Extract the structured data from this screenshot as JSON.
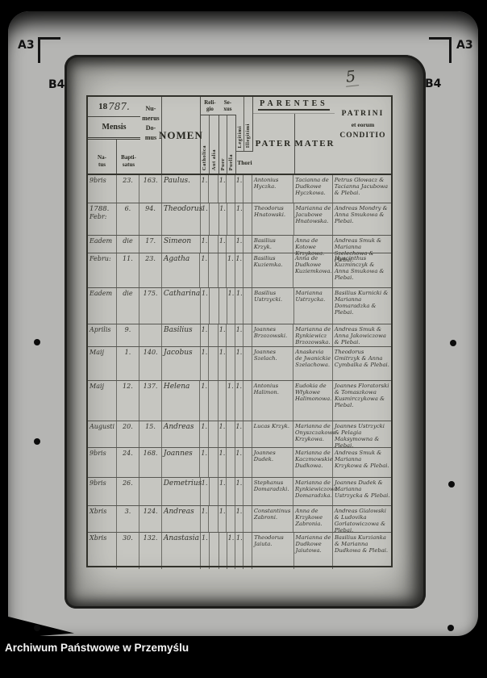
{
  "frame": {
    "marks": {
      "a3_left": "A3",
      "a3_right": "A3",
      "b4_left": "B4",
      "b4_right": "B4"
    },
    "page_number": "5",
    "caption": "Archiwum Państwowe w Przemyślu"
  },
  "colors": {
    "background": "#000000",
    "film": "#b5b5b3",
    "page": "#c6c6c1",
    "ink": "#26261f",
    "handwriting": "#31312b",
    "caption_text": "#f5f5f5"
  },
  "table": {
    "header": {
      "year_printed": "18",
      "year_hand": "787.",
      "mensis": "Mensis",
      "natus_l1": "Na-",
      "natus_l2": "tus",
      "bapt_l1": "Bapti-",
      "bapt_l2": "satus",
      "numerus_l1": "Nu-",
      "numerus_l2": "merus",
      "numerus_l3": "Do-",
      "numerus_l4": "mus",
      "nomen": "NOMEN",
      "religio_l1": "Reli-",
      "religio_l2": "gio",
      "catholica": "Catholica",
      "aut_alia": "Aut alia",
      "sexus_l1": "Se-",
      "sexus_l2": "xus",
      "puer": "Puer",
      "puella": "Puella",
      "legitimi": "Legitimi",
      "illegitimi": "Illegitimi",
      "thori": "Thori",
      "parentes": "PARENTES",
      "pater": "PATER",
      "mater": "MATER",
      "patrini_l1": "PATRINI",
      "patrini_l2": "et eorum",
      "patrini_l3": "CONDITIO"
    },
    "rows": [
      {
        "year_note": "",
        "natus": "9bris",
        "baptisatus": "23.",
        "domus": "163.",
        "nomen": "Paulus.",
        "catholica": "1.",
        "aut_alia": "",
        "puer": "1.",
        "puella": "",
        "legitimi": "1.",
        "illegitimi": "",
        "pater": "Antonius Hyczka.",
        "mater": "Tacianna de Dudkowe Hyczkowa.",
        "patrini": "Petrus Głowacz & Tacianna Jacubowa & Plebai."
      },
      {
        "year_note": "1788.",
        "natus": "Febr:",
        "baptisatus": "6.",
        "domus": "94.",
        "nomen": "Theodorus",
        "catholica": "1.",
        "aut_alia": "",
        "puer": "1.",
        "puella": "",
        "legitimi": "1.",
        "illegitimi": "",
        "pater": "Theodorus Hnatowski.",
        "mater": "Marianna de Jacubowe Hnatowska.",
        "patrini": "Andreas Mondry & Anna Smukowa & Plebai."
      },
      {
        "year_note": "",
        "natus": "Eadem",
        "baptisatus": "die",
        "domus": "17.",
        "nomen": "Simeon",
        "catholica": "1.",
        "aut_alia": "",
        "puer": "1.",
        "puella": "",
        "legitimi": "1.",
        "illegitimi": "",
        "pater": "Basilius Krzyk.",
        "mater": "Anna de Kotowe Krzykowa.",
        "patrini": "Andreas Smuk & Marianna Szelechowa & Plebai."
      },
      {
        "year_note": "",
        "natus": "Febru:",
        "baptisatus": "11.",
        "domus": "23.",
        "nomen": "Agatha",
        "catholica": "1.",
        "aut_alia": "",
        "puer": "",
        "puella": "1.",
        "legitimi": "1.",
        "illegitimi": "",
        "pater": "Basilius Kuziemka.",
        "mater": "Anna de Dudkowe Kuziemkowa.",
        "patrini": "Hyacinthus Kuzminczyk & Anna Smukowa & Plebai."
      },
      {
        "year_note": "",
        "natus": "Eadem",
        "baptisatus": "die",
        "domus": "175.",
        "nomen": "Catharina",
        "catholica": "1.",
        "aut_alia": "",
        "puer": "",
        "puella": "1.",
        "legitimi": "1.",
        "illegitimi": "",
        "pater": "Basilius Ustrzycki.",
        "mater": "Marianna Ustrzycka.",
        "patrini": "Basilius Kurnicki & Marianna Domaradzka & Plebai."
      },
      {
        "year_note": "",
        "natus": "Aprilis",
        "baptisatus": "9.",
        "domus": "",
        "nomen": "Basilius",
        "catholica": "1.",
        "aut_alia": "",
        "puer": "1.",
        "puella": "",
        "legitimi": "1.",
        "illegitimi": "",
        "pater": "Joannes Brzozowski.",
        "mater": "Marianna de Rynkiewicz Brzozowska.",
        "patrini": "Andreas Smuk & Anna Jakowiczowa & Plebai."
      },
      {
        "year_note": "",
        "natus": "Maij",
        "baptisatus": "1.",
        "domus": "140.",
        "nomen": "Jacobus",
        "catholica": "1.",
        "aut_alia": "",
        "puer": "1.",
        "puella": "",
        "legitimi": "1.",
        "illegitimi": "",
        "pater": "Joannes Szelach.",
        "mater": "Anaskevia de Jwanickie Szelachowa.",
        "patrini": "Theodorus Gmitrzyk & Anna Cymbalka & Plebai."
      },
      {
        "year_note": "",
        "natus": "Maij",
        "baptisatus": "12.",
        "domus": "137.",
        "nomen": "Helena",
        "catholica": "1.",
        "aut_alia": "",
        "puer": "",
        "puella": "1.",
        "legitimi": "1.",
        "illegitimi": "",
        "pater": "Antonius Halimon.",
        "mater": "Eudokia de Włykowe Halimonowa.",
        "patrini": "Joannes Floratorski & Tomaszkowa Kusmirczykowa & Plebal."
      },
      {
        "year_note": "",
        "natus": "Augusti",
        "baptisatus": "20.",
        "domus": "15.",
        "nomen": "Andreas",
        "catholica": "1.",
        "aut_alia": "",
        "puer": "1.",
        "puella": "",
        "legitimi": "1.",
        "illegitimi": "",
        "pater": "Lucas Krzyk.",
        "mater": "Marianna de Onyszczakowe Krzykowa.",
        "patrini": "Joannes Ustrzycki & Pelagia Maksymowna & Plebai."
      },
      {
        "year_note": "",
        "natus": "9bris",
        "baptisatus": "24.",
        "domus": "168.",
        "nomen": "Joannes",
        "catholica": "1.",
        "aut_alia": "",
        "puer": "1.",
        "puella": "",
        "legitimi": "1.",
        "illegitimi": "",
        "pater": "Joannes Dudek.",
        "mater": "Marianna de Kaczmowskie Dudkowa.",
        "patrini": "Andreas Smuk & Marianna Krzykowa & Plebai."
      },
      {
        "year_note": "",
        "natus": "9bris",
        "baptisatus": "26.",
        "domus": "",
        "nomen": "Demetrius",
        "catholica": "1.",
        "aut_alia": "",
        "puer": "1.",
        "puella": "",
        "legitimi": "1.",
        "illegitimi": "",
        "pater": "Stephanus Domaradzki.",
        "mater": "Marianna de Rynkiewiczowa Domaradzka.",
        "patrini": "Joannes Dudek & Marianna Ustrzycka & Plebai."
      },
      {
        "year_note": "",
        "natus": "Xbris",
        "baptisatus": "3.",
        "domus": "124.",
        "nomen": "Andreas",
        "catholica": "1.",
        "aut_alia": "",
        "puer": "1.",
        "puella": "",
        "legitimi": "1.",
        "illegitimi": "",
        "pater": "Constantinus Zabroni.",
        "mater": "Anna de Krzykowe Zabronia.",
        "patrini": "Andreas Gialowski & Ludovika Gorlatowiczowa & Plebai."
      },
      {
        "year_note": "",
        "natus": "Xbris",
        "baptisatus": "30.",
        "domus": "132.",
        "nomen": "Anastasia",
        "catholica": "1.",
        "aut_alia": "",
        "puer": "",
        "puella": "1.",
        "legitimi": "1.",
        "illegitimi": "",
        "pater": "Theodorus Jaiuta.",
        "mater": "Marianna de Dudkowe Jaiutowa.",
        "patrini": "Basilius Kurzianka & Marianna Dudkowa & Plebai."
      }
    ]
  }
}
